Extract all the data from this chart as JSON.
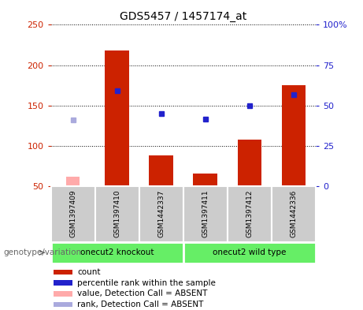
{
  "title": "GDS5457 / 1457174_at",
  "samples": [
    "GSM1397409",
    "GSM1397410",
    "GSM1442337",
    "GSM1397411",
    "GSM1397412",
    "GSM1442336"
  ],
  "count_values": [
    null,
    218,
    88,
    65,
    108,
    175
  ],
  "count_absent": [
    62,
    null,
    null,
    null,
    null,
    null
  ],
  "rank_values": [
    null,
    168,
    140,
    133,
    150,
    163
  ],
  "rank_absent": [
    132,
    null,
    null,
    null,
    null,
    null
  ],
  "ylim_left": [
    50,
    250
  ],
  "left_ticks": [
    50,
    100,
    150,
    200,
    250
  ],
  "right_ticks": [
    0,
    25,
    50,
    75,
    100
  ],
  "right_tick_labels": [
    "0",
    "25",
    "50",
    "75",
    "100%"
  ],
  "color_red": "#cc2200",
  "color_pink": "#ffaaaa",
  "color_blue": "#2222cc",
  "color_blue_light": "#aaaadd",
  "color_sample_box": "#cccccc",
  "color_group_box": "#66ee66",
  "legend_items": [
    "count",
    "percentile rank within the sample",
    "value, Detection Call = ABSENT",
    "rank, Detection Call = ABSENT"
  ],
  "legend_colors": [
    "#cc2200",
    "#2222cc",
    "#ffaaaa",
    "#aaaadd"
  ],
  "bar_width": 0.55,
  "figsize": [
    4.61,
    3.93
  ],
  "dpi": 100
}
